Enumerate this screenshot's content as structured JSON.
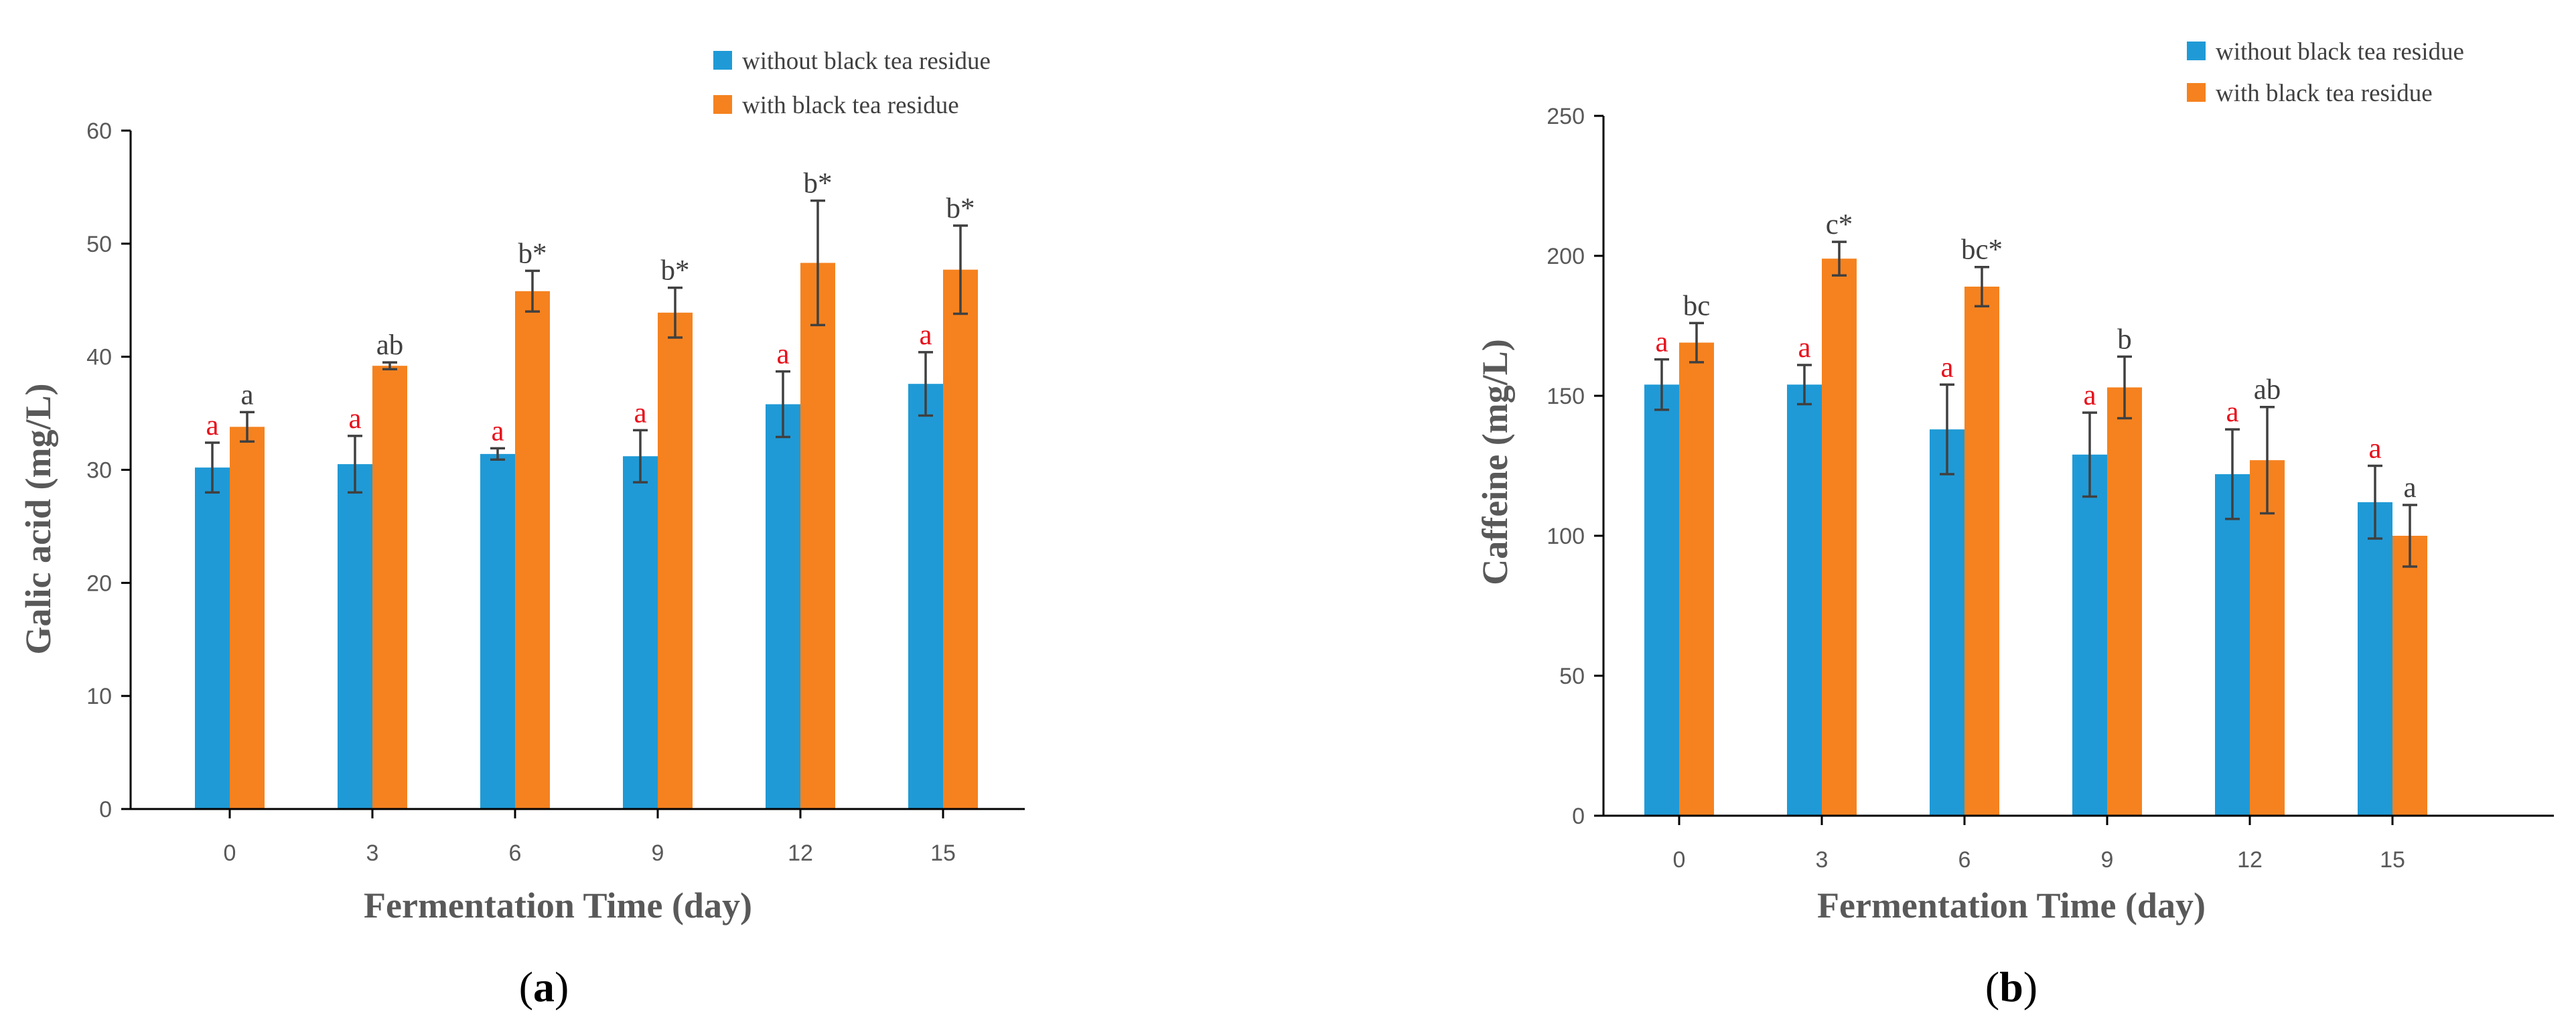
{
  "colors": {
    "series_without": "#1f9ad6",
    "series_with": "#f5821f",
    "significance_red": "#e8101b",
    "significance_dark": "#404040",
    "axis": "#000000",
    "error_bar": "#404040"
  },
  "chart_data": [
    {
      "type": "bar",
      "panel_label": "a",
      "title": "",
      "xlabel": "Fermentation Time (day)",
      "ylabel": "Galic acid (mg/L)",
      "categories": [
        "0",
        "3",
        "6",
        "9",
        "12",
        "15"
      ],
      "ylim": [
        0,
        60
      ],
      "yticks": [
        0,
        10,
        20,
        30,
        40,
        50,
        60
      ],
      "legend_position": "top-right",
      "series": [
        {
          "name": "without black tea residue",
          "values": [
            30.2,
            30.5,
            31.4,
            31.2,
            35.8,
            37.6
          ],
          "errors": [
            2.2,
            2.5,
            0.5,
            2.3,
            2.9,
            2.8
          ],
          "labels": [
            "a",
            "a",
            "a",
            "a",
            "a",
            "a"
          ]
        },
        {
          "name": "with black tea residue",
          "values": [
            33.8,
            39.2,
            45.8,
            43.9,
            48.3,
            47.7
          ],
          "errors": [
            1.3,
            0.3,
            1.8,
            2.2,
            5.5,
            3.9
          ],
          "labels": [
            "a",
            "ab",
            "b*",
            "b*",
            "b*",
            "b*"
          ]
        }
      ]
    },
    {
      "type": "bar",
      "panel_label": "b",
      "title": "",
      "xlabel": "Fermentation Time (day)",
      "ylabel": "Caffeine (mg/L)",
      "categories": [
        "0",
        "3",
        "6",
        "9",
        "12",
        "15"
      ],
      "ylim": [
        0,
        250
      ],
      "yticks": [
        0,
        50,
        100,
        150,
        200,
        250
      ],
      "legend_position": "top-right",
      "series": [
        {
          "name": "without black tea residue",
          "values": [
            154,
            154,
            138,
            129,
            122,
            112
          ],
          "errors": [
            9,
            7,
            16,
            15,
            16,
            13
          ],
          "labels": [
            "a",
            "a",
            "a",
            "a",
            "a",
            "a"
          ]
        },
        {
          "name": "with black tea residue",
          "values": [
            169,
            199,
            189,
            153,
            127,
            100
          ],
          "errors": [
            7,
            6,
            7,
            11,
            19,
            11
          ],
          "labels": [
            "bc",
            "c*",
            "bc*",
            "b",
            "ab",
            "a"
          ]
        }
      ]
    }
  ]
}
